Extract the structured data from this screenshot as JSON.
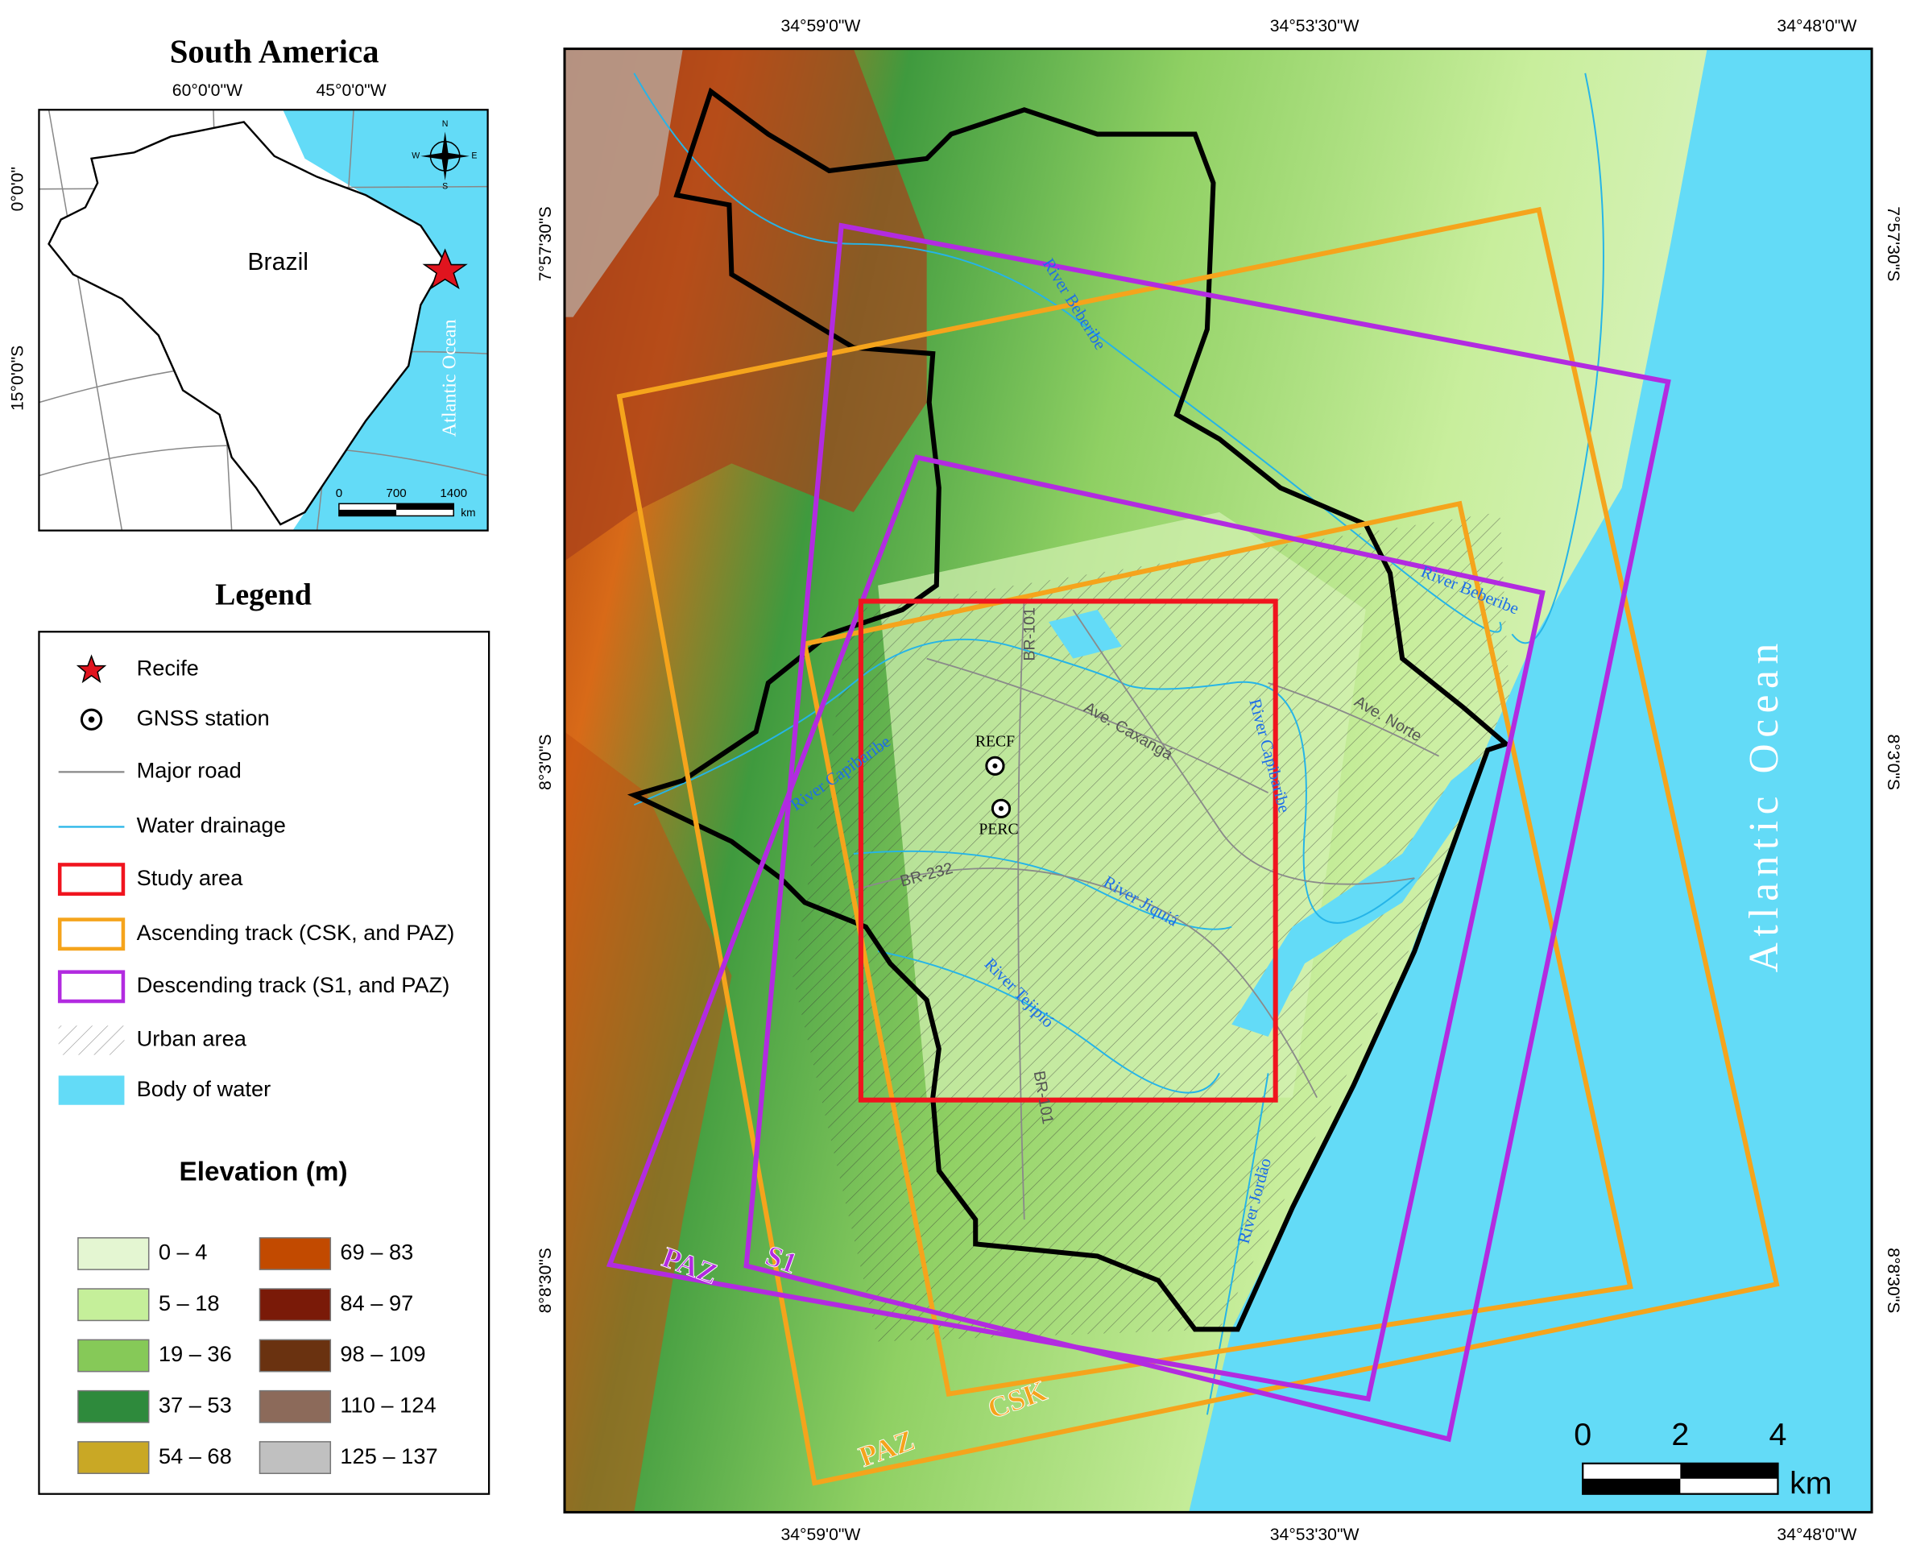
{
  "inset": {
    "title": "South America",
    "xticks": [
      "60°0'0\"W",
      "45°0'0\"W"
    ],
    "yticks": [
      "0°0'0\"",
      "15°0'0\"S"
    ],
    "country": "Brazil",
    "ocean": "Atlantic Ocean",
    "compass": [
      "N",
      "E",
      "S",
      "W"
    ],
    "scale": [
      "0",
      "700",
      "1400"
    ],
    "scale_unit": "km"
  },
  "legend": {
    "title": "Legend",
    "items": [
      "Recife",
      "GNSS station",
      "Major road",
      "Water drainage",
      "Study area",
      "Ascending track (CSK, and PAZ)",
      "Descending track (S1, and PAZ)",
      "Urban area",
      "Body of water"
    ]
  },
  "elevation": {
    "title": "Elevation (m)",
    "classes": [
      {
        "label": "0 – 4",
        "color": "#e4f6d2"
      },
      {
        "label": "5 – 18",
        "color": "#c5ef9a"
      },
      {
        "label": "19 – 36",
        "color": "#86c958"
      },
      {
        "label": "37 – 53",
        "color": "#2e8a3c"
      },
      {
        "label": "54 – 68",
        "color": "#c9a825"
      },
      {
        "label": "69 – 83",
        "color": "#c24a00"
      },
      {
        "label": "84 – 97",
        "color": "#7a1a08"
      },
      {
        "label": "98 – 109",
        "color": "#6a3210"
      },
      {
        "label": "110 – 124",
        "color": "#8c6a5a"
      },
      {
        "label": "125 – 137",
        "color": "#c0c0c0"
      }
    ]
  },
  "map": {
    "top_labels": [
      "34°59'0\"W",
      "34°53'30\"W",
      "34°48'0\"W"
    ],
    "bottom_labels": [
      "34°59'0\"W",
      "34°53'30\"W",
      "34°48'0\"W"
    ],
    "left_labels": [
      "7°57'30\"S",
      "8°3'0\"S",
      "8°8'30\"S"
    ],
    "right_labels": [
      "7°57'30\"S",
      "8°3'0\"S",
      "8°8'30\"S"
    ],
    "ocean": "Atlantic Ocean",
    "stations": [
      "RECF",
      "PERC"
    ],
    "rivers": [
      "River Beberibe",
      "River Beberibe",
      "River Capibaribe",
      "River Capibaribe",
      "River Jiquiá",
      "River Tejipió",
      "River Jordão"
    ],
    "roads": [
      "BR-101",
      "BR-232",
      "Ave. Caxangá",
      "Ave. Norte",
      "BR-101"
    ],
    "tracks": [
      "PAZ",
      "S1",
      "CSK",
      "PAZ"
    ],
    "scale": [
      "0",
      "2",
      "4"
    ],
    "scale_unit": "km"
  }
}
